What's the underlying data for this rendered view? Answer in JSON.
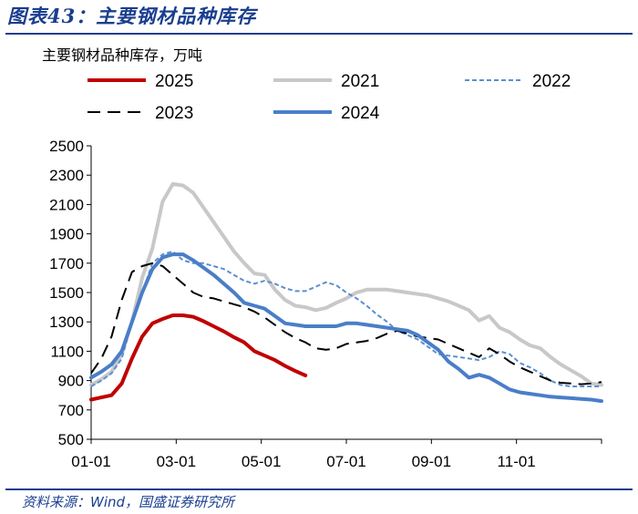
{
  "figure_label": "图表43：主要钢材品种库存",
  "source_note": "资料来源：Wind，国盛证券研究所",
  "chart_data": {
    "type": "line",
    "title": "主要钢材品种库存",
    "ylabel": "主要钢材品种库存，万吨",
    "xlabel": "",
    "ylim": [
      500,
      2500
    ],
    "yticks": [
      500,
      700,
      900,
      1100,
      1300,
      1500,
      1700,
      1900,
      2100,
      2300,
      2500
    ],
    "xticks": [
      "01-01",
      "03-01",
      "05-01",
      "07-01",
      "09-01",
      "11-01"
    ],
    "grid": false,
    "legend_position": "top",
    "series": [
      {
        "name": "2025",
        "color": "#c00000",
        "style": "solid",
        "width": 4,
        "x": [
          0,
          1,
          2,
          3,
          4,
          5,
          6,
          7,
          8,
          9,
          10,
          11,
          12,
          13,
          14,
          15,
          16,
          17,
          18,
          19,
          20,
          21
        ],
        "y": [
          770,
          785,
          800,
          880,
          1050,
          1200,
          1290,
          1320,
          1345,
          1345,
          1335,
          1305,
          1270,
          1235,
          1195,
          1160,
          1100,
          1070,
          1040,
          1000,
          965,
          935
        ]
      },
      {
        "name": "2021",
        "color": "#c8c8c8",
        "style": "solid",
        "width": 4,
        "x": [
          0,
          1,
          2,
          3,
          4,
          5,
          6,
          7,
          8,
          9,
          10,
          11,
          12,
          13,
          14,
          15,
          16,
          17,
          18,
          19,
          20,
          21,
          22,
          23,
          24,
          25,
          26,
          27,
          28,
          29,
          30,
          31,
          32,
          33,
          34,
          35,
          36,
          37,
          38,
          39,
          40,
          41,
          42,
          43,
          44,
          45,
          46,
          47,
          48,
          49,
          50
        ],
        "y": [
          870,
          910,
          960,
          1080,
          1300,
          1600,
          1800,
          2120,
          2240,
          2230,
          2180,
          2080,
          1980,
          1880,
          1780,
          1700,
          1630,
          1620,
          1520,
          1450,
          1410,
          1400,
          1380,
          1395,
          1430,
          1460,
          1500,
          1520,
          1520,
          1520,
          1510,
          1500,
          1490,
          1480,
          1460,
          1440,
          1410,
          1380,
          1310,
          1340,
          1260,
          1230,
          1180,
          1140,
          1120,
          1060,
          1010,
          970,
          930,
          880,
          870
        ]
      },
      {
        "name": "2022",
        "color": "#5b8fd0",
        "style": "dotted",
        "width": 2,
        "x": [
          0,
          1,
          2,
          3,
          4,
          5,
          6,
          7,
          8,
          9,
          10,
          11,
          12,
          13,
          14,
          15,
          16,
          17,
          18,
          19,
          20,
          21,
          22,
          23,
          24,
          25,
          26,
          27,
          28,
          29,
          30,
          31,
          32,
          33,
          34,
          35,
          36,
          37,
          38,
          39,
          40,
          41,
          42,
          43,
          44,
          45,
          46,
          47,
          48,
          49,
          50
        ],
        "y": [
          860,
          900,
          950,
          1050,
          1300,
          1500,
          1700,
          1760,
          1780,
          1720,
          1700,
          1700,
          1680,
          1660,
          1620,
          1580,
          1560,
          1580,
          1560,
          1530,
          1510,
          1510,
          1540,
          1570,
          1550,
          1500,
          1460,
          1410,
          1350,
          1300,
          1240,
          1210,
          1180,
          1130,
          1080,
          1070,
          1060,
          1050,
          1040,
          1060,
          1100,
          1080,
          1020,
          990,
          950,
          900,
          870,
          860,
          860,
          860,
          860
        ]
      },
      {
        "name": "2023",
        "color": "#000000",
        "style": "dashed",
        "width": 2,
        "x": [
          0,
          1,
          2,
          3,
          4,
          5,
          6,
          7,
          8,
          9,
          10,
          11,
          12,
          13,
          14,
          15,
          16,
          17,
          18,
          19,
          20,
          21,
          22,
          23,
          24,
          25,
          26,
          27,
          28,
          29,
          30,
          31,
          32,
          33,
          34,
          35,
          36,
          37,
          38,
          39,
          40,
          41,
          42,
          43,
          44,
          45,
          46,
          47,
          48,
          49,
          50
        ],
        "y": [
          950,
          1050,
          1200,
          1450,
          1640,
          1680,
          1700,
          1680,
          1620,
          1560,
          1500,
          1470,
          1460,
          1440,
          1420,
          1400,
          1370,
          1330,
          1280,
          1230,
          1190,
          1160,
          1120,
          1110,
          1120,
          1150,
          1160,
          1170,
          1190,
          1220,
          1240,
          1220,
          1200,
          1190,
          1180,
          1150,
          1120,
          1090,
          1060,
          1120,
          1080,
          1030,
          990,
          960,
          930,
          900,
          885,
          880,
          875,
          880,
          890
        ]
      },
      {
        "name": "2024",
        "color": "#4a7ec8",
        "style": "solid",
        "width": 4,
        "x": [
          0,
          1,
          2,
          3,
          4,
          5,
          6,
          7,
          8,
          9,
          10,
          11,
          12,
          13,
          14,
          15,
          16,
          17,
          18,
          19,
          20,
          21,
          22,
          23,
          24,
          25,
          26,
          27,
          28,
          29,
          30,
          31,
          32,
          33,
          34,
          35,
          36,
          37,
          38,
          39,
          40,
          41,
          42,
          43,
          44,
          45,
          46,
          47,
          48,
          49,
          50
        ],
        "y": [
          920,
          960,
          1010,
          1100,
          1300,
          1500,
          1660,
          1740,
          1760,
          1760,
          1720,
          1670,
          1620,
          1560,
          1500,
          1430,
          1410,
          1390,
          1340,
          1290,
          1280,
          1270,
          1270,
          1270,
          1270,
          1290,
          1290,
          1280,
          1270,
          1260,
          1250,
          1240,
          1210,
          1160,
          1110,
          1030,
          980,
          920,
          940,
          920,
          880,
          840,
          820,
          810,
          800,
          790,
          785,
          780,
          775,
          770,
          760
        ]
      }
    ]
  }
}
